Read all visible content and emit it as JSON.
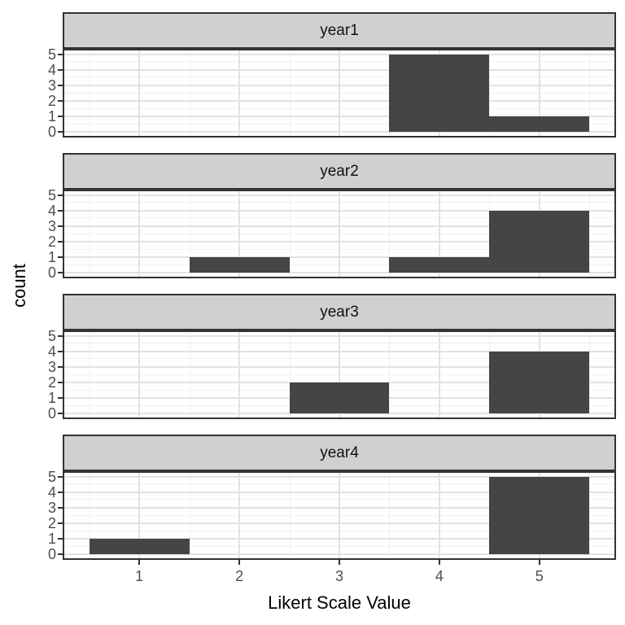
{
  "chart_data": {
    "type": "bar",
    "title": "",
    "xlabel": "Likert Scale Value",
    "ylabel": "count",
    "x_ticks": [
      "1",
      "2",
      "3",
      "4",
      "5"
    ],
    "y_ticks": [
      "0",
      "1",
      "2",
      "3",
      "4",
      "5"
    ],
    "x_range": [
      0.25,
      5.75
    ],
    "y_range": [
      -0.25,
      5.25
    ],
    "bar_width": 1,
    "grid": "major+minor",
    "legend": "none",
    "facets": [
      {
        "label": "year1",
        "bars": [
          {
            "x": 4,
            "count": 5
          },
          {
            "x": 5,
            "count": 1
          }
        ]
      },
      {
        "label": "year2",
        "bars": [
          {
            "x": 2,
            "count": 1
          },
          {
            "x": 4,
            "count": 1
          },
          {
            "x": 5,
            "count": 4
          }
        ]
      },
      {
        "label": "year3",
        "bars": [
          {
            "x": 3,
            "count": 2
          },
          {
            "x": 5,
            "count": 4
          }
        ]
      },
      {
        "label": "year4",
        "bars": [
          {
            "x": 1,
            "count": 1
          },
          {
            "x": 5,
            "count": 5
          }
        ]
      }
    ],
    "colors": {
      "bar_fill": "#454545",
      "strip_background": "#D0D0D0",
      "panel_border": "#333333",
      "panel_background": "#FFFFFF",
      "grid_major": "#E2E2E2",
      "grid_minor": "#F0F0F0",
      "tick_label": "#4D4D4D",
      "axis_title": "#000000",
      "figure_background": "#FFFFFF"
    }
  }
}
